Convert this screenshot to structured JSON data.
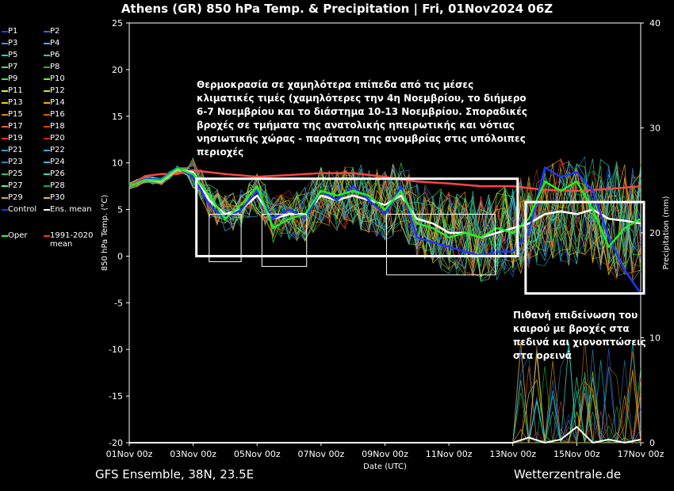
{
  "title": "Athens  (GR)  850 hPa Temp. & Precipitation | Fri, 01Nov2024 06Z",
  "footer": {
    "model": "GFS Ensemble, 38N, 23.5E",
    "source": "Wetterzentrale.de"
  },
  "legend": [
    {
      "label": "P1",
      "color": "#2c3cff"
    },
    {
      "label": "P2",
      "color": "#3366ff"
    },
    {
      "label": "P3",
      "color": "#3399ff"
    },
    {
      "label": "P4",
      "color": "#33bbff"
    },
    {
      "label": "P5",
      "color": "#00dddd"
    },
    {
      "label": "P6",
      "color": "#33cc99"
    },
    {
      "label": "P7",
      "color": "#66dd66"
    },
    {
      "label": "P8",
      "color": "#22bb22"
    },
    {
      "label": "P9",
      "color": "#44ee44"
    },
    {
      "label": "P10",
      "color": "#66ff33"
    },
    {
      "label": "P11",
      "color": "#ccff33"
    },
    {
      "label": "P12",
      "color": "#dddd22"
    },
    {
      "label": "P13",
      "color": "#ffcc00"
    },
    {
      "label": "P14",
      "color": "#ffaa00"
    },
    {
      "label": "P15",
      "color": "#dd8800"
    },
    {
      "label": "P16",
      "color": "#cc6600"
    },
    {
      "label": "P17",
      "color": "#ff6633"
    },
    {
      "label": "P18",
      "color": "#dd4422"
    },
    {
      "label": "P19",
      "color": "#ff3333"
    },
    {
      "label": "P20",
      "color": "#cc2222"
    },
    {
      "label": "P21",
      "color": "#3399cc"
    },
    {
      "label": "P22",
      "color": "#33aadd"
    },
    {
      "label": "P23",
      "color": "#2288bb"
    },
    {
      "label": "P24",
      "color": "#44bbee"
    },
    {
      "label": "P25",
      "color": "#22cc66"
    },
    {
      "label": "P26",
      "color": "#33ddaa"
    },
    {
      "label": "P27",
      "color": "#66ee99"
    },
    {
      "label": "P28",
      "color": "#22aa55"
    },
    {
      "label": "P29",
      "color": "#ddaa33"
    },
    {
      "label": "P30",
      "color": "#eebb44"
    },
    {
      "label": "Control",
      "color": "#1f2cff"
    },
    {
      "label": "Ens. mean",
      "color": "#ffffff"
    },
    {
      "label": "Oper",
      "color": "#33ff33"
    },
    {
      "label": "1991-2020 mean",
      "color": "#ff3333"
    }
  ],
  "annotations": {
    "note1": "Θερμοκρασία σε χαμηλότερα επίπεδα από τις μέσες κλιματικές τιμές (χαμηλότερες την 4η Νοεμβρίου, το διήμερο 6-7 Νοεμβρίου και το διάστημα 10-13 Νοεμβρίου. Σποραδικές βροχές σε τμήματα της ανατολικής ηπειρωτικής και νότιας νησιωτικής χώρας - παράταση της ανομβρίας στις υπόλοιπες περιοχές",
    "note2": "Πιθανή επιδείνωση του καιρού με βροχές στα πεδινά και χιονοπτώσεις στα ορεινά"
  },
  "chart_data": {
    "type": "line",
    "xlabel": "Date (UTC)",
    "ylabel": "850 hPa Temp. (°C)",
    "y2label": "Precipitation (mm)",
    "ylim": [
      -20,
      25
    ],
    "y2lim": [
      0,
      40
    ],
    "yticks": [
      25,
      20,
      15,
      10,
      5,
      0,
      -5,
      -10,
      -15,
      -20
    ],
    "y2ticks": [
      40,
      30,
      20,
      10,
      0
    ],
    "xlim_days": [
      0,
      16
    ],
    "xticks": [
      {
        "day": 0,
        "label": "01Nov 00z"
      },
      {
        "day": 2,
        "label": "03Nov 00z"
      },
      {
        "day": 4,
        "label": "05Nov 00z"
      },
      {
        "day": 6,
        "label": "07Nov 00z"
      },
      {
        "day": 8,
        "label": "09Nov 00z"
      },
      {
        "day": 10,
        "label": "11Nov 00z"
      },
      {
        "day": 12,
        "label": "13Nov 00z"
      },
      {
        "day": 14,
        "label": "15Nov 00z"
      },
      {
        "day": 16,
        "label": "17Nov 00z"
      }
    ],
    "grid": false,
    "legend_position": "left",
    "series": [
      {
        "name": "1991-2020 mean",
        "color": "#ff4444",
        "width": 2.5,
        "x": [
          0,
          0.5,
          1,
          1.5,
          2,
          3,
          4,
          5,
          6,
          7,
          8,
          9,
          10,
          11,
          12,
          13,
          14,
          15,
          16
        ],
        "y": [
          7.5,
          8.6,
          8.8,
          8.8,
          9.2,
          8.8,
          8.5,
          8.7,
          8.9,
          8.9,
          8.5,
          8.0,
          7.8,
          7.5,
          7.5,
          7.1,
          7.0,
          7.2,
          7.5
        ]
      },
      {
        "name": "Ens. mean",
        "color": "#ffffff",
        "width": 2.5,
        "x": [
          0,
          0.5,
          1,
          1.5,
          2,
          2.5,
          3,
          3.5,
          4,
          4.5,
          5,
          5.5,
          6,
          6.5,
          7,
          7.5,
          8,
          8.5,
          9,
          9.5,
          10,
          10.5,
          11,
          11.5,
          12,
          12.5,
          13,
          13.5,
          14,
          14.5,
          15,
          15.5,
          16
        ],
        "y": [
          7.5,
          8.2,
          8.0,
          9.3,
          9.0,
          6.0,
          4.5,
          5.0,
          6.5,
          4.0,
          4.5,
          4.5,
          6.5,
          6.0,
          6.5,
          6.0,
          5.5,
          6.5,
          4.0,
          3.5,
          2.5,
          2.5,
          2.0,
          2.5,
          3.0,
          3.5,
          4.5,
          4.8,
          4.5,
          5.0,
          4.0,
          3.8,
          3.5
        ]
      },
      {
        "name": "Control",
        "color": "#2233ff",
        "width": 2.5,
        "x": [
          0,
          0.5,
          1,
          1.5,
          2,
          2.5,
          3,
          3.5,
          4,
          4.5,
          5,
          5.5,
          6,
          6.5,
          7,
          7.5,
          8,
          8.5,
          9,
          9.5,
          10,
          10.5,
          11,
          11.5,
          12,
          12.5,
          13,
          13.5,
          14,
          14.5,
          15,
          15.5,
          16
        ],
        "y": [
          7.5,
          8.3,
          8.2,
          9.5,
          8.5,
          5.5,
          4.0,
          5.0,
          7.0,
          4.0,
          5.0,
          4.0,
          7.0,
          6.0,
          7.5,
          6.0,
          4.5,
          7.5,
          2.0,
          1.5,
          1.0,
          0.5,
          0.0,
          0.5,
          0.5,
          2.5,
          9.5,
          8.5,
          9.0,
          7.0,
          2.0,
          -1.5,
          -4.0
        ]
      },
      {
        "name": "Oper",
        "color": "#22ee22",
        "width": 2.5,
        "x": [
          0,
          0.5,
          1,
          1.5,
          2,
          2.5,
          3,
          3.5,
          4,
          4.5,
          5,
          5.5,
          6,
          6.5,
          7,
          7.5,
          8,
          8.5,
          9,
          9.5,
          10,
          10.5,
          11,
          11.5,
          12,
          12.5,
          13,
          13.5,
          14,
          14.5,
          15,
          15.5,
          16
        ],
        "y": [
          7.5,
          8.2,
          8.1,
          9.4,
          8.8,
          6.5,
          4.0,
          5.5,
          7.5,
          3.0,
          4.0,
          4.5,
          7.0,
          6.5,
          7.0,
          6.5,
          5.0,
          7.0,
          3.5,
          3.0,
          2.0,
          2.5,
          2.0,
          3.0,
          2.5,
          4.0,
          8.0,
          7.0,
          8.0,
          5.0,
          1.0,
          3.0,
          4.0
        ]
      }
    ],
    "members_note_spread": true,
    "precip_series": [
      {
        "name": "Ens. mean",
        "color": "#ffffff",
        "x": [
          0,
          12,
          12.5,
          13,
          13.5,
          14,
          14.5,
          15,
          15.5,
          16
        ],
        "y": [
          0,
          0,
          0.5,
          0,
          0.3,
          1.5,
          0,
          0.3,
          0,
          0.3
        ]
      }
    ]
  }
}
